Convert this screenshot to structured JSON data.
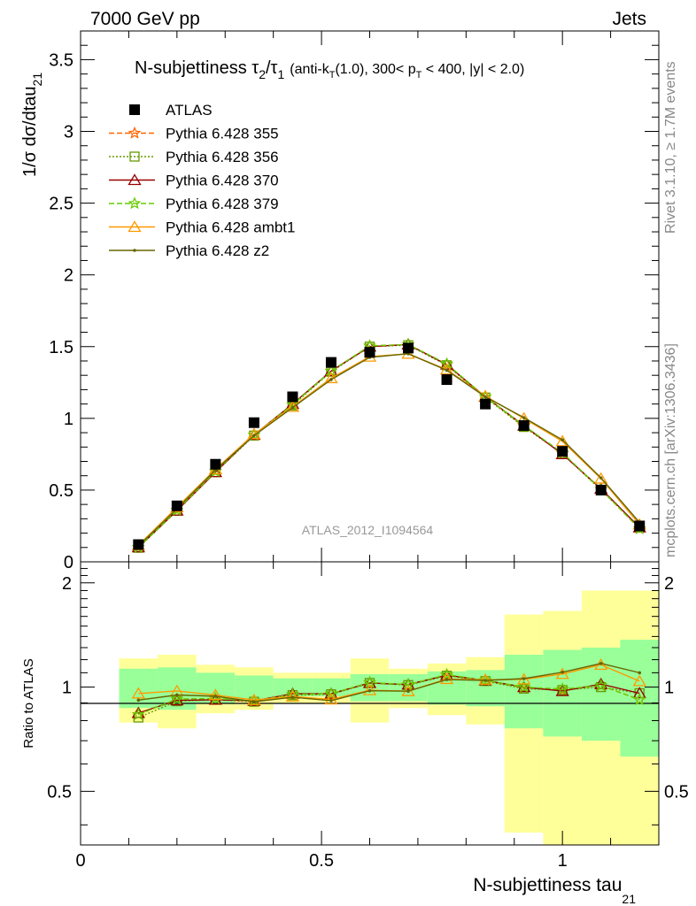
{
  "header": {
    "left": "7000 GeV pp",
    "right": "Jets"
  },
  "side_labels": {
    "rivet": "Rivet 3.1.10, ≥ 1.7M events",
    "mcplots": "mcplots.cern.ch [arXiv:1306.3436]"
  },
  "chart_data": {
    "type": "line",
    "title_main": "N-subjettiness τ",
    "title_sub2": "2",
    "title_slash": "/τ",
    "title_sub1": "1",
    "title_cond_a": "(anti-k",
    "title_cond_T": "T",
    "title_cond_b": "(1.0), 300< p",
    "title_cond_T2": "T",
    "title_cond_c": " < 400, |y| < 2.0)",
    "ylabel_main": "1/σ dσ/dtau",
    "ylabel_sub": "21",
    "xlabel_main": "N-subjettiness tau",
    "xlabel_sub": "21",
    "ratio_ylabel": "Ratio to ATLAS",
    "watermark": "ATLAS_2012_I1094564",
    "xlim": [
      0,
      1.2
    ],
    "ylim": [
      0,
      3.7
    ],
    "ratio_ylim": [
      0.35,
      2.3
    ],
    "x_ticks": [
      "0",
      "0.5",
      "1"
    ],
    "y_ticks": [
      "0",
      "0.5",
      "1",
      "1.5",
      "2",
      "2.5",
      "3",
      "3.5"
    ],
    "ratio_ticks": [
      "0.5",
      "1",
      "2"
    ],
    "x": [
      0.12,
      0.2,
      0.28,
      0.36,
      0.44,
      0.52,
      0.6,
      0.68,
      0.76,
      0.84,
      0.92,
      1.0,
      1.08,
      1.16
    ],
    "bin_edges": [
      0.08,
      0.16,
      0.24,
      0.32,
      0.4,
      0.48,
      0.56,
      0.64,
      0.72,
      0.8,
      0.88,
      0.96,
      1.04,
      1.12,
      1.2
    ],
    "data": {
      "name": "ATLAS",
      "values": [
        0.12,
        0.39,
        0.68,
        0.97,
        1.15,
        1.39,
        1.46,
        1.49,
        1.27,
        1.1,
        0.95,
        0.77,
        0.5,
        0.25
      ],
      "ratio_stat": [
        0.13,
        0.14,
        0.1,
        0.08,
        0.06,
        0.06,
        0.09,
        0.09,
        0.11,
        0.12,
        0.24,
        0.28,
        0.3,
        0.37
      ],
      "ratio_total": [
        0.21,
        0.24,
        0.16,
        0.14,
        0.1,
        0.1,
        0.21,
        0.13,
        0.17,
        0.22,
        0.62,
        0.66,
        0.9,
        0.9
      ]
    },
    "series": [
      {
        "name": "Pythia 6.428 355",
        "color": "#ff6600",
        "dash": "6,3",
        "marker": "star",
        "values": [
          0.1,
          0.36,
          0.63,
          0.885,
          1.095,
          1.33,
          1.505,
          1.515,
          1.375,
          1.15,
          0.945,
          0.755,
          0.505,
          0.23
        ]
      },
      {
        "name": "Pythia 6.428 356",
        "color": "#669900",
        "dash": "2,2",
        "marker": "square",
        "values": [
          0.098,
          0.355,
          0.625,
          0.88,
          1.09,
          1.325,
          1.5,
          1.51,
          1.37,
          1.145,
          0.94,
          0.755,
          0.5,
          0.24
        ]
      },
      {
        "name": "Pythia 6.428 370",
        "color": "#990000",
        "dash": "",
        "marker": "triangle",
        "values": [
          0.101,
          0.357,
          0.625,
          0.885,
          1.1,
          1.33,
          1.5,
          1.515,
          1.375,
          1.15,
          0.95,
          0.75,
          0.51,
          0.24
        ]
      },
      {
        "name": "Pythia 6.428 379",
        "color": "#66cc00",
        "dash": "6,3",
        "marker": "star",
        "values": [
          0.1,
          0.36,
          0.63,
          0.885,
          1.095,
          1.33,
          1.505,
          1.515,
          1.38,
          1.15,
          0.95,
          0.76,
          0.505,
          0.23
        ]
      },
      {
        "name": "Pythia 6.428 ambt1",
        "color": "#ff9900",
        "dash": "",
        "marker": "triangle",
        "values": [
          0.115,
          0.38,
          0.645,
          0.89,
          1.08,
          1.28,
          1.43,
          1.45,
          1.34,
          1.155,
          1.0,
          0.84,
          0.58,
          0.26
        ]
      },
      {
        "name": "Pythia 6.428 z2",
        "color": "#666600",
        "dash": "",
        "marker": "dot",
        "values": [
          0.11,
          0.37,
          0.64,
          0.88,
          1.075,
          1.27,
          1.425,
          1.45,
          1.335,
          1.15,
          1.005,
          0.85,
          0.585,
          0.275
        ]
      }
    ],
    "data_color": "#000000",
    "stat_band_color": "#99ff99",
    "total_band_color": "#ffff99"
  }
}
